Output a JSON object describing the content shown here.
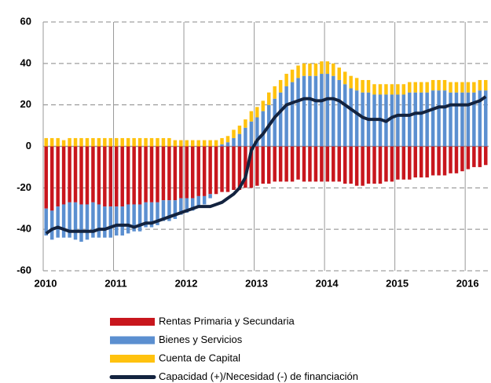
{
  "chart_data": {
    "type": "bar",
    "stacked": true,
    "categories": [
      "2010",
      null,
      null,
      null,
      null,
      null,
      null,
      null,
      null,
      null,
      null,
      null,
      "2011",
      null,
      null,
      null,
      null,
      null,
      null,
      null,
      null,
      null,
      null,
      null,
      "2012",
      null,
      null,
      null,
      null,
      null,
      null,
      null,
      null,
      null,
      null,
      null,
      "2013",
      null,
      null,
      null,
      null,
      null,
      null,
      null,
      null,
      null,
      null,
      null,
      "2014",
      null,
      null,
      null,
      null,
      null,
      null,
      null,
      null,
      null,
      null,
      null,
      "2015",
      null,
      null,
      null,
      null,
      null,
      null,
      null,
      null,
      null,
      null,
      null,
      "2016",
      null,
      null,
      null
    ],
    "series": [
      {
        "name": "Rentas Primaria y Secundaria",
        "color": "#c8161d",
        "values": [
          -30,
          -31,
          -29,
          -28,
          -27,
          -27,
          -28,
          -28,
          -27,
          -28,
          -29,
          -29,
          -29,
          -29,
          -28,
          -28,
          -28,
          -27,
          -27,
          -27,
          -26,
          -26,
          -26,
          -25,
          -25,
          -25,
          -24,
          -24,
          -23,
          -23,
          -22,
          -22,
          -21,
          -21,
          -20,
          -20,
          -19,
          -18,
          -18,
          -17,
          -17,
          -17,
          -17,
          -16,
          -17,
          -17,
          -17,
          -17,
          -17,
          -17,
          -17,
          -18,
          -18,
          -19,
          -19,
          -18,
          -18,
          -18,
          -17,
          -17,
          -16,
          -16,
          -16,
          -15,
          -15,
          -15,
          -14,
          -14,
          -14,
          -13,
          -13,
          -12,
          -11,
          -10,
          -10,
          -9
        ]
      },
      {
        "name": "Bienes y Servicios",
        "color": "#5b8fd0",
        "values": [
          -13,
          -14,
          -15,
          -16,
          -17,
          -18,
          -18,
          -17,
          -17,
          -16,
          -15,
          -15,
          -14,
          -14,
          -14,
          -13,
          -13,
          -12,
          -12,
          -11,
          -10,
          -10,
          -9,
          -8,
          -7,
          -6,
          -5,
          -4,
          -2,
          0,
          1,
          2,
          4,
          6,
          9,
          12,
          14,
          17,
          20,
          23,
          26,
          29,
          31,
          33,
          34,
          34,
          34,
          35,
          35,
          34,
          32,
          30,
          28,
          27,
          26,
          26,
          25,
          25,
          25,
          25,
          25,
          25,
          26,
          26,
          26,
          26,
          27,
          27,
          27,
          26,
          26,
          26,
          26,
          26,
          27,
          27
        ]
      },
      {
        "name": "Cuenta de Capital",
        "color": "#ffc20e",
        "values": [
          4,
          4,
          4,
          3,
          4,
          4,
          4,
          4,
          4,
          4,
          4,
          4,
          4,
          4,
          4,
          4,
          4,
          4,
          4,
          4,
          4,
          4,
          3,
          3,
          3,
          3,
          3,
          3,
          3,
          3,
          3,
          3,
          4,
          4,
          4,
          5,
          5,
          5,
          6,
          6,
          6,
          6,
          6,
          6,
          6,
          6,
          6,
          6,
          6,
          6,
          6,
          6,
          6,
          6,
          6,
          6,
          5,
          5,
          5,
          5,
          5,
          5,
          5,
          5,
          5,
          5,
          5,
          5,
          5,
          5,
          5,
          5,
          5,
          5,
          5,
          5
        ]
      },
      {
        "name": "Capacidad (+)/Necesidad (-) de financiación",
        "color": "#13233f",
        "type": "line",
        "values": [
          -42,
          -40,
          -39,
          -40,
          -41,
          -41,
          -41,
          -41,
          -41,
          -40,
          -40,
          -39,
          -38,
          -38,
          -38,
          -39,
          -38,
          -37,
          -37,
          -36,
          -35,
          -34,
          -33,
          -32,
          -31,
          -30,
          -29,
          -29,
          -29,
          -28,
          -27,
          -25,
          -23,
          -20,
          -15,
          -2,
          3,
          6,
          10,
          14,
          17,
          20,
          21,
          22,
          23,
          23,
          22,
          22,
          23,
          23,
          22,
          20,
          18,
          16,
          14,
          13,
          13,
          13,
          12,
          14,
          15,
          15,
          15,
          16,
          16,
          17,
          18,
          19,
          19,
          20,
          20,
          20,
          20,
          21,
          22,
          24
        ]
      }
    ],
    "ylim": [
      -60,
      60
    ],
    "yticks": [
      -60,
      -40,
      -20,
      0,
      20,
      40,
      60
    ],
    "grid": true,
    "legend": "bottom"
  }
}
